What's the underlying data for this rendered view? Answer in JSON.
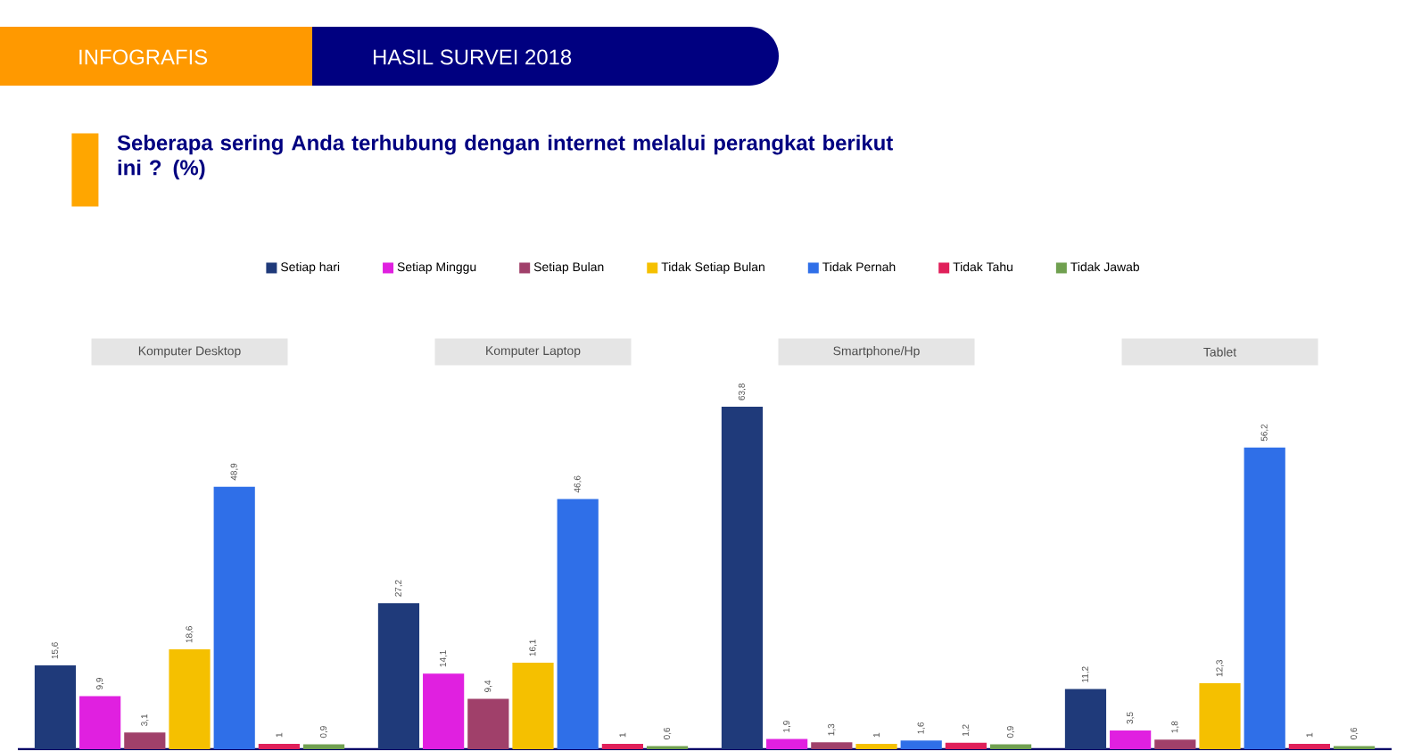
{
  "chart_data": {
    "type": "bar",
    "title": "Seberapa sering Anda terhubung dengan internet melalui perangkat berikut ini ? (%)",
    "annotations": [
      "INFOGRAFIS",
      "HASIL SURVEI 2018"
    ],
    "categories": [
      "Komputer Desktop",
      "Komputer Laptop",
      "Smartphone/Hp",
      "Tablet"
    ],
    "series": [
      {
        "name": "Setiap hari",
        "color": "#1f3a7a",
        "values": [
          15.6,
          27.2,
          63.8,
          11.2
        ],
        "value_labels": [
          "15,6",
          "27,2",
          "63,8",
          "11,2"
        ]
      },
      {
        "name": "Setiap Minggu",
        "color": "#e020e0",
        "values": [
          9.9,
          14.1,
          1.9,
          3.5
        ],
        "value_labels": [
          "9,9",
          "14,1",
          "1,9",
          "3,5"
        ]
      },
      {
        "name": "Setiap Bulan",
        "color": "#a0406a",
        "values": [
          3.1,
          9.4,
          1.3,
          1.8
        ],
        "value_labels": [
          "3,1",
          "9,4",
          "1,3",
          "1,8"
        ]
      },
      {
        "name": "Tidak Setiap Bulan",
        "color": "#f5c000",
        "values": [
          18.6,
          16.1,
          1,
          12.3
        ],
        "value_labels": [
          "18,6",
          "16,1",
          "1",
          "12,3"
        ]
      },
      {
        "name": "Tidak Pernah",
        "color": "#2f6fe8",
        "values": [
          48.9,
          46.6,
          1.6,
          56.2
        ],
        "value_labels": [
          "48,9",
          "46,6",
          "1,6",
          "56,2"
        ]
      },
      {
        "name": "Tidak Tahu",
        "color": "#e0205a",
        "values": [
          1,
          1,
          1.2,
          1
        ],
        "value_labels": [
          "1",
          "1",
          "1,2",
          "1"
        ]
      },
      {
        "name": "Tidak Jawab",
        "color": "#70a050",
        "values": [
          0.9,
          0.6,
          0.9,
          0.6
        ],
        "value_labels": [
          "0,9",
          "0,6",
          "0,9",
          "0,6"
        ]
      }
    ],
    "legend": "top"
  }
}
